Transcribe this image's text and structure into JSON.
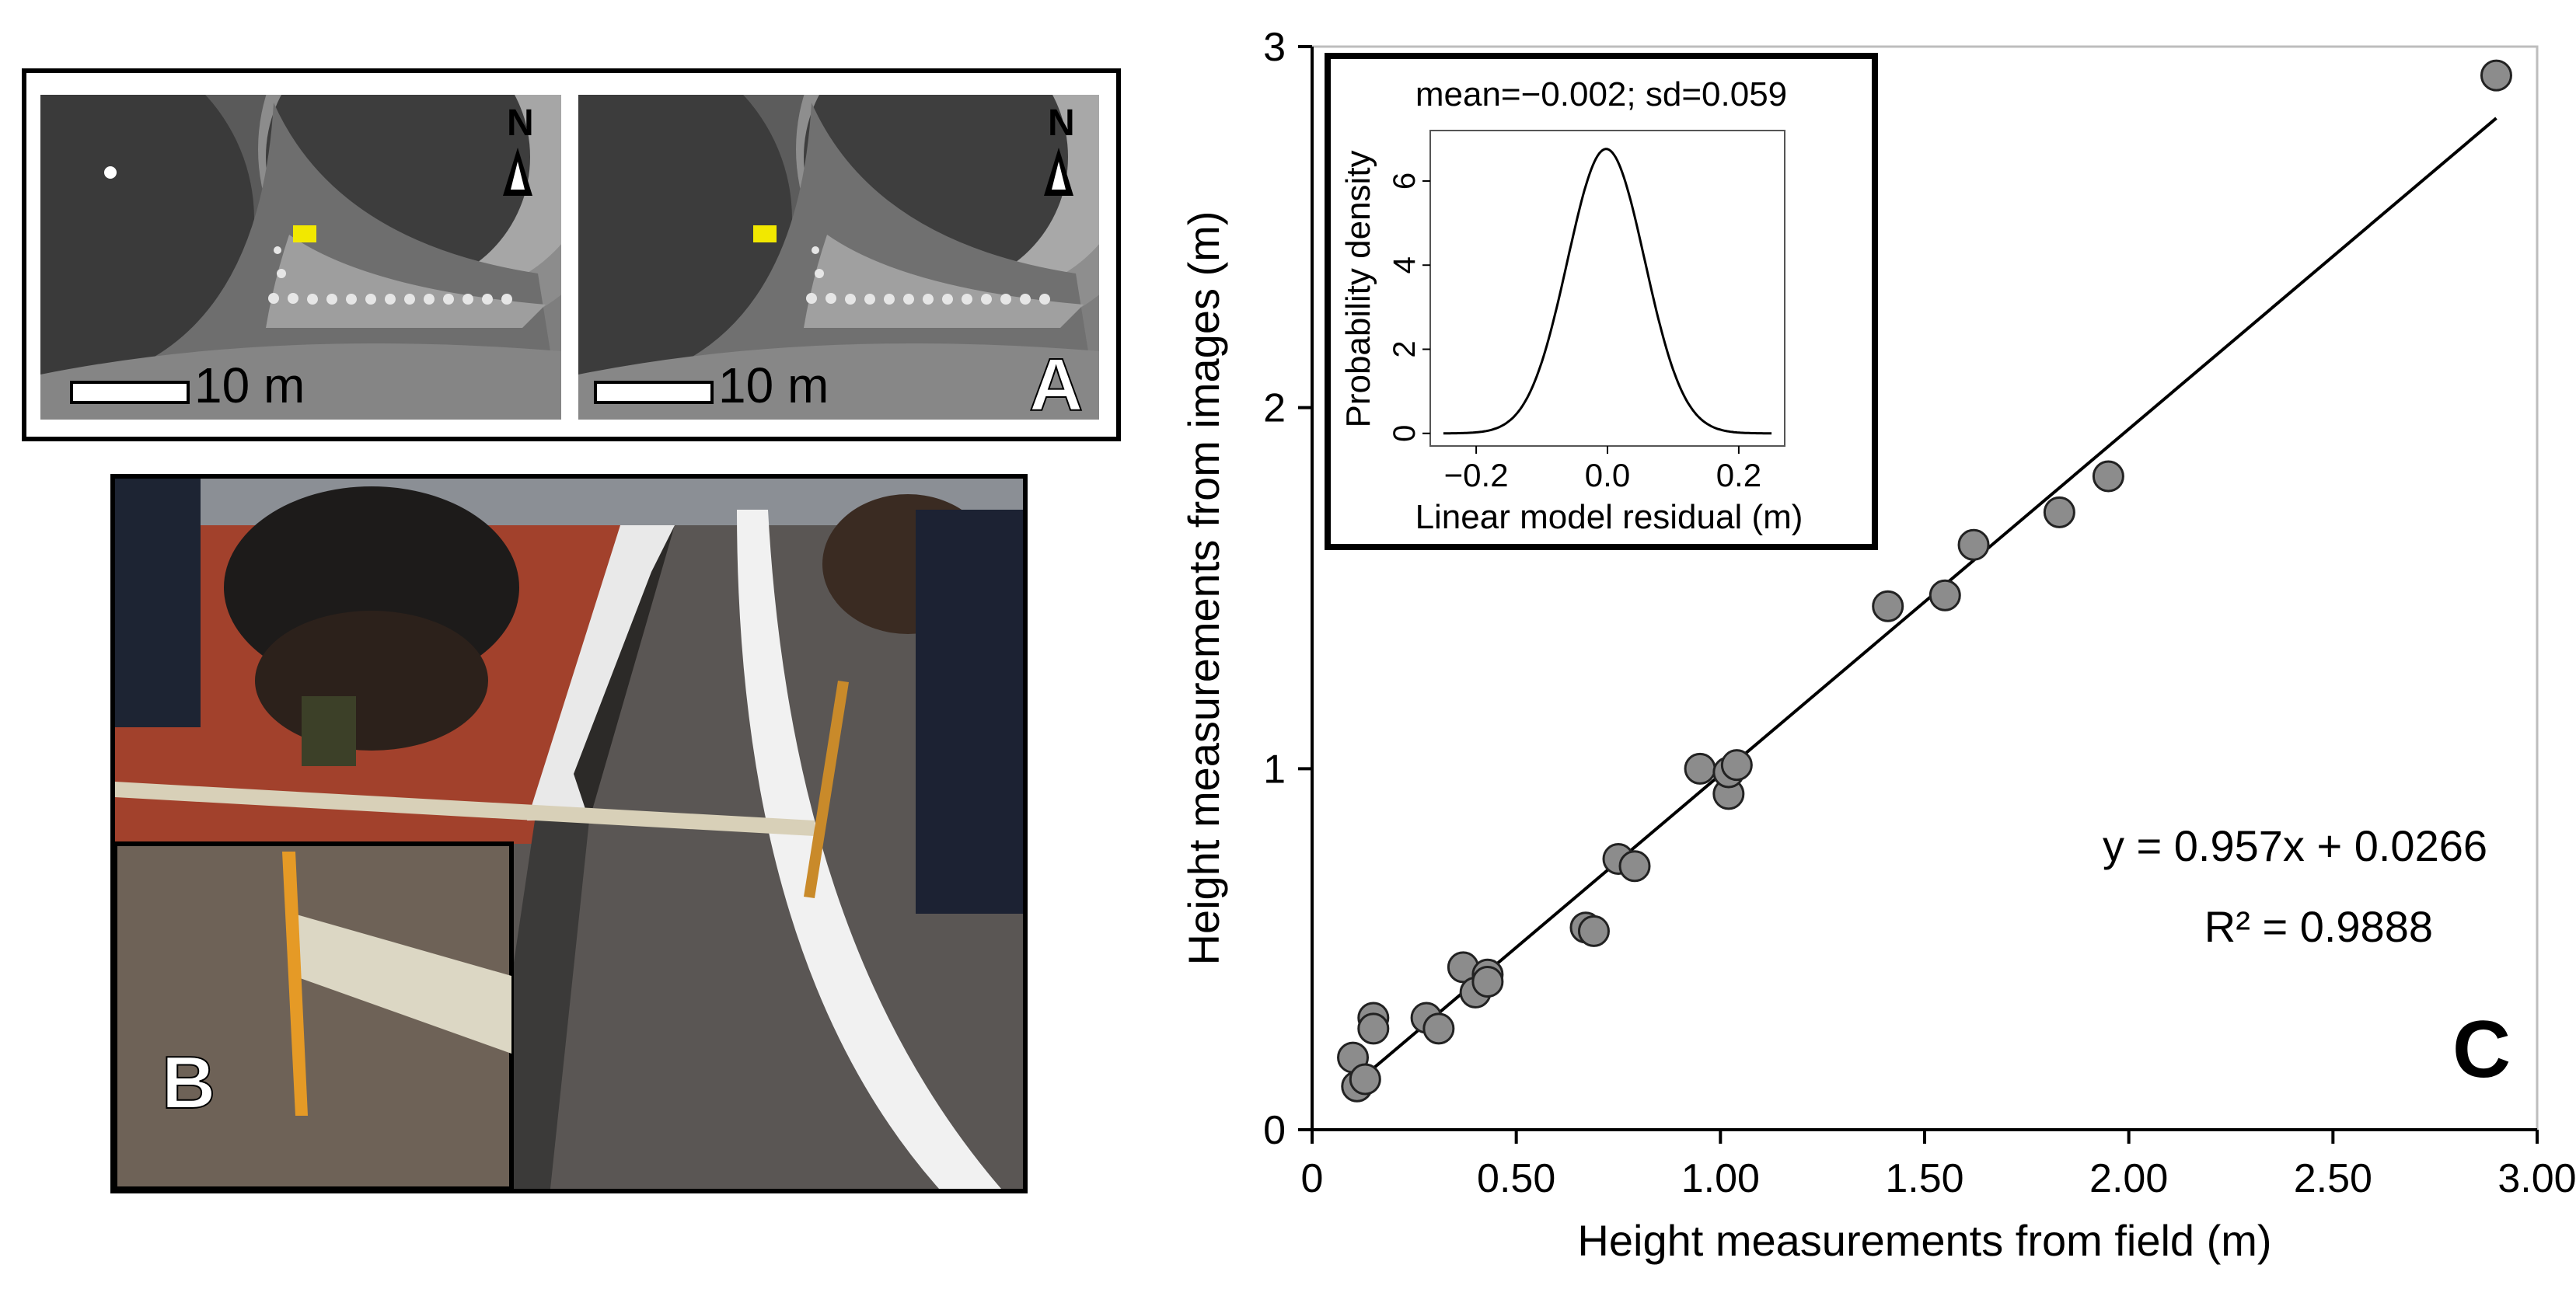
{
  "panel_a": {
    "letter": "A",
    "images": [
      {
        "scale_label": "10 m",
        "north_label": "N"
      },
      {
        "scale_label": "10 m",
        "north_label": "N"
      }
    ]
  },
  "panel_b": {
    "letter": "B"
  },
  "panel_c": {
    "letter": "C",
    "equation": "y = 0.957x + 0.0266",
    "r_squared": "R² = 0.9888"
  },
  "chart_data": [
    {
      "type": "scatter",
      "xlabel": "Height measurements from field (m)",
      "ylabel": "Height measurements from images (m)",
      "xlim": [
        0,
        3.0
      ],
      "ylim": [
        0,
        3
      ],
      "x_ticks": [
        "0",
        "0.50",
        "1.00",
        "1.50",
        "2.00",
        "2.50",
        "3.00"
      ],
      "y_ticks": [
        "0",
        "1",
        "2",
        "3"
      ],
      "points": [
        {
          "x": 0.1,
          "y": 0.2
        },
        {
          "x": 0.11,
          "y": 0.12
        },
        {
          "x": 0.13,
          "y": 0.14
        },
        {
          "x": 0.15,
          "y": 0.31
        },
        {
          "x": 0.15,
          "y": 0.28
        },
        {
          "x": 0.28,
          "y": 0.31
        },
        {
          "x": 0.31,
          "y": 0.28
        },
        {
          "x": 0.37,
          "y": 0.45
        },
        {
          "x": 0.4,
          "y": 0.38
        },
        {
          "x": 0.43,
          "y": 0.43
        },
        {
          "x": 0.43,
          "y": 0.41
        },
        {
          "x": 0.67,
          "y": 0.56
        },
        {
          "x": 0.69,
          "y": 0.55
        },
        {
          "x": 0.75,
          "y": 0.75
        },
        {
          "x": 0.79,
          "y": 0.73
        },
        {
          "x": 0.95,
          "y": 1.0
        },
        {
          "x": 1.02,
          "y": 0.93
        },
        {
          "x": 1.02,
          "y": 0.99
        },
        {
          "x": 1.04,
          "y": 1.01
        },
        {
          "x": 1.41,
          "y": 1.45
        },
        {
          "x": 1.55,
          "y": 1.48
        },
        {
          "x": 1.62,
          "y": 1.62
        },
        {
          "x": 1.83,
          "y": 1.71
        },
        {
          "x": 1.95,
          "y": 1.81
        },
        {
          "x": 2.9,
          "y": 2.92
        }
      ],
      "fit_line": {
        "slope": 0.957,
        "intercept": 0.0266,
        "x_range": [
          0.1,
          2.9
        ]
      },
      "grid": false
    },
    {
      "type": "line",
      "title": "mean=−0.002; sd=0.059",
      "xlabel": "Linear model residual (m)",
      "ylabel": "Probability density",
      "xlim": [
        -0.27,
        0.27
      ],
      "ylim": [
        -0.3,
        7.2
      ],
      "x_ticks": [
        "−0.2",
        "0.0",
        "0.2"
      ],
      "y_ticks": [
        "0",
        "2",
        "4",
        "6"
      ],
      "mean": -0.002,
      "sd": 0.059,
      "x_range": [
        -0.25,
        0.25
      ]
    }
  ]
}
